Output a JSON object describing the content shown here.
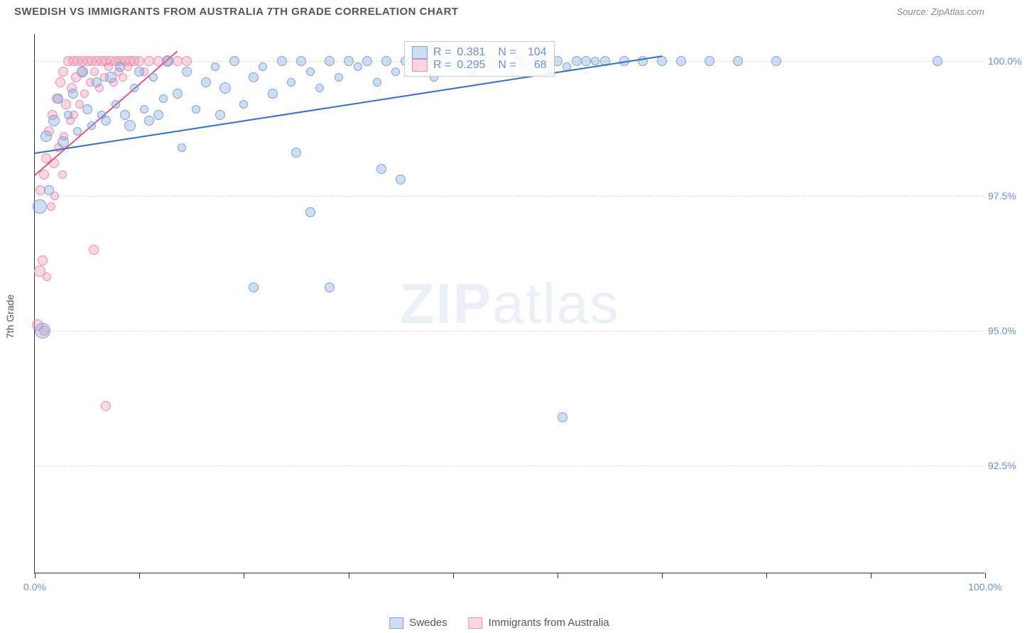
{
  "header": {
    "title": "SWEDISH VS IMMIGRANTS FROM AUSTRALIA 7TH GRADE CORRELATION CHART",
    "source": "Source: ZipAtlas.com"
  },
  "watermark": {
    "zip": "ZIP",
    "atlas": "atlas"
  },
  "axes": {
    "ylabel": "7th Grade",
    "xlim": [
      0,
      100
    ],
    "ylim": [
      90.5,
      100.5
    ],
    "yticks": [
      {
        "v": 92.5,
        "label": "92.5%"
      },
      {
        "v": 95.0,
        "label": "95.0%"
      },
      {
        "v": 97.5,
        "label": "97.5%"
      },
      {
        "v": 100.0,
        "label": "100.0%"
      }
    ],
    "xtick_positions": [
      0,
      11,
      22,
      33,
      44,
      55,
      66,
      77,
      88,
      100
    ],
    "xtick_labels": {
      "first": "0.0%",
      "last": "100.0%"
    },
    "grid_color": "#dddddd"
  },
  "series": {
    "swedes": {
      "label": "Swedes",
      "fill": "rgba(120,160,220,0.35)",
      "stroke": "#7aa3dc",
      "trend_color": "#2f6fd0",
      "R": "0.381",
      "N": "104",
      "trend": {
        "x1": 0,
        "y1": 98.3,
        "x2": 66,
        "y2": 100.1
      },
      "points": [
        {
          "x": 0.5,
          "y": 97.3,
          "r": 10
        },
        {
          "x": 0.8,
          "y": 95.0,
          "r": 11
        },
        {
          "x": 1.2,
          "y": 98.6,
          "r": 8
        },
        {
          "x": 1.5,
          "y": 97.6,
          "r": 7
        },
        {
          "x": 2.0,
          "y": 98.9,
          "r": 8
        },
        {
          "x": 2.5,
          "y": 99.3,
          "r": 7
        },
        {
          "x": 3.0,
          "y": 98.5,
          "r": 8
        },
        {
          "x": 3.5,
          "y": 99.0,
          "r": 6
        },
        {
          "x": 4.0,
          "y": 99.4,
          "r": 7
        },
        {
          "x": 4.5,
          "y": 98.7,
          "r": 6
        },
        {
          "x": 5.0,
          "y": 99.8,
          "r": 8
        },
        {
          "x": 5.5,
          "y": 99.1,
          "r": 7
        },
        {
          "x": 6.0,
          "y": 98.8,
          "r": 6
        },
        {
          "x": 6.5,
          "y": 99.6,
          "r": 7
        },
        {
          "x": 7.0,
          "y": 99.0,
          "r": 6
        },
        {
          "x": 7.5,
          "y": 98.9,
          "r": 7
        },
        {
          "x": 8.0,
          "y": 99.7,
          "r": 8
        },
        {
          "x": 8.5,
          "y": 99.2,
          "r": 6
        },
        {
          "x": 9.0,
          "y": 99.9,
          "r": 7
        },
        {
          "x": 9.5,
          "y": 99.0,
          "r": 7
        },
        {
          "x": 10.0,
          "y": 98.8,
          "r": 8
        },
        {
          "x": 10.5,
          "y": 99.5,
          "r": 6
        },
        {
          "x": 11.0,
          "y": 99.8,
          "r": 7
        },
        {
          "x": 11.5,
          "y": 99.1,
          "r": 6
        },
        {
          "x": 12.0,
          "y": 98.9,
          "r": 7
        },
        {
          "x": 12.5,
          "y": 99.7,
          "r": 6
        },
        {
          "x": 13.0,
          "y": 99.0,
          "r": 7
        },
        {
          "x": 13.5,
          "y": 99.3,
          "r": 6
        },
        {
          "x": 14.0,
          "y": 100.0,
          "r": 8
        },
        {
          "x": 15.0,
          "y": 99.4,
          "r": 7
        },
        {
          "x": 15.5,
          "y": 98.4,
          "r": 6
        },
        {
          "x": 16.0,
          "y": 99.8,
          "r": 7
        },
        {
          "x": 17.0,
          "y": 99.1,
          "r": 6
        },
        {
          "x": 18.0,
          "y": 99.6,
          "r": 7
        },
        {
          "x": 19.0,
          "y": 99.9,
          "r": 6
        },
        {
          "x": 19.5,
          "y": 99.0,
          "r": 7
        },
        {
          "x": 20.0,
          "y": 99.5,
          "r": 8
        },
        {
          "x": 21.0,
          "y": 100.0,
          "r": 7
        },
        {
          "x": 22.0,
          "y": 99.2,
          "r": 6
        },
        {
          "x": 23.0,
          "y": 99.7,
          "r": 7
        },
        {
          "x": 23.0,
          "y": 95.8,
          "r": 7
        },
        {
          "x": 24.0,
          "y": 99.9,
          "r": 6
        },
        {
          "x": 25.0,
          "y": 99.4,
          "r": 7
        },
        {
          "x": 26.0,
          "y": 100.0,
          "r": 7
        },
        {
          "x": 27.0,
          "y": 99.6,
          "r": 6
        },
        {
          "x": 27.5,
          "y": 98.3,
          "r": 7
        },
        {
          "x": 28.0,
          "y": 100.0,
          "r": 7
        },
        {
          "x": 29.0,
          "y": 99.8,
          "r": 6
        },
        {
          "x": 29.0,
          "y": 97.2,
          "r": 7
        },
        {
          "x": 30.0,
          "y": 99.5,
          "r": 6
        },
        {
          "x": 31.0,
          "y": 100.0,
          "r": 7
        },
        {
          "x": 31.0,
          "y": 95.8,
          "r": 7
        },
        {
          "x": 32.0,
          "y": 99.7,
          "r": 6
        },
        {
          "x": 33.0,
          "y": 100.0,
          "r": 7
        },
        {
          "x": 34.0,
          "y": 99.9,
          "r": 6
        },
        {
          "x": 35.0,
          "y": 100.0,
          "r": 7
        },
        {
          "x": 36.0,
          "y": 99.6,
          "r": 6
        },
        {
          "x": 36.5,
          "y": 98.0,
          "r": 7
        },
        {
          "x": 37.0,
          "y": 100.0,
          "r": 7
        },
        {
          "x": 38.0,
          "y": 99.8,
          "r": 6
        },
        {
          "x": 38.5,
          "y": 97.8,
          "r": 7
        },
        {
          "x": 39.0,
          "y": 100.0,
          "r": 7
        },
        {
          "x": 40.0,
          "y": 99.9,
          "r": 6
        },
        {
          "x": 41.0,
          "y": 100.0,
          "r": 7
        },
        {
          "x": 42.0,
          "y": 99.7,
          "r": 6
        },
        {
          "x": 43.0,
          "y": 100.0,
          "r": 7
        },
        {
          "x": 44.0,
          "y": 99.9,
          "r": 6
        },
        {
          "x": 45.0,
          "y": 100.0,
          "r": 7
        },
        {
          "x": 46.0,
          "y": 99.8,
          "r": 6
        },
        {
          "x": 47.0,
          "y": 100.0,
          "r": 7
        },
        {
          "x": 48.0,
          "y": 99.9,
          "r": 6
        },
        {
          "x": 49.0,
          "y": 100.0,
          "r": 7
        },
        {
          "x": 50.0,
          "y": 99.8,
          "r": 6
        },
        {
          "x": 51.0,
          "y": 100.0,
          "r": 7
        },
        {
          "x": 52.0,
          "y": 99.9,
          "r": 6
        },
        {
          "x": 53.0,
          "y": 100.0,
          "r": 7
        },
        {
          "x": 54.0,
          "y": 99.8,
          "r": 6
        },
        {
          "x": 55.0,
          "y": 100.0,
          "r": 7
        },
        {
          "x": 55.5,
          "y": 93.4,
          "r": 7
        },
        {
          "x": 56.0,
          "y": 99.9,
          "r": 6
        },
        {
          "x": 57.0,
          "y": 100.0,
          "r": 7
        },
        {
          "x": 58.0,
          "y": 100.0,
          "r": 7
        },
        {
          "x": 59.0,
          "y": 100.0,
          "r": 6
        },
        {
          "x": 60.0,
          "y": 100.0,
          "r": 7
        },
        {
          "x": 62.0,
          "y": 100.0,
          "r": 7
        },
        {
          "x": 64.0,
          "y": 100.0,
          "r": 7
        },
        {
          "x": 66.0,
          "y": 100.0,
          "r": 7
        },
        {
          "x": 68.0,
          "y": 100.0,
          "r": 7
        },
        {
          "x": 71.0,
          "y": 100.0,
          "r": 7
        },
        {
          "x": 74.0,
          "y": 100.0,
          "r": 7
        },
        {
          "x": 78.0,
          "y": 100.0,
          "r": 7
        },
        {
          "x": 95.0,
          "y": 100.0,
          "r": 7
        }
      ]
    },
    "australia": {
      "label": "Immigrants from Australia",
      "fill": "rgba(240,140,170,0.35)",
      "stroke": "#eb8fb0",
      "trend_color": "#e6537f",
      "R": "0.295",
      "N": "68",
      "trend": {
        "x1": 0,
        "y1": 97.9,
        "x2": 15,
        "y2": 100.2
      },
      "points": [
        {
          "x": 0.3,
          "y": 95.1,
          "r": 8
        },
        {
          "x": 0.5,
          "y": 96.1,
          "r": 8
        },
        {
          "x": 0.6,
          "y": 97.6,
          "r": 7
        },
        {
          "x": 0.8,
          "y": 96.3,
          "r": 7
        },
        {
          "x": 1.0,
          "y": 97.9,
          "r": 7
        },
        {
          "x": 1.0,
          "y": 95.0,
          "r": 7
        },
        {
          "x": 1.2,
          "y": 98.2,
          "r": 7
        },
        {
          "x": 1.3,
          "y": 96.0,
          "r": 6
        },
        {
          "x": 1.5,
          "y": 98.7,
          "r": 7
        },
        {
          "x": 1.7,
          "y": 97.3,
          "r": 6
        },
        {
          "x": 1.9,
          "y": 99.0,
          "r": 7
        },
        {
          "x": 2.0,
          "y": 98.1,
          "r": 7
        },
        {
          "x": 2.1,
          "y": 97.5,
          "r": 6
        },
        {
          "x": 2.3,
          "y": 99.3,
          "r": 7
        },
        {
          "x": 2.5,
          "y": 98.4,
          "r": 6
        },
        {
          "x": 2.7,
          "y": 99.6,
          "r": 7
        },
        {
          "x": 2.9,
          "y": 97.9,
          "r": 6
        },
        {
          "x": 3.0,
          "y": 99.8,
          "r": 7
        },
        {
          "x": 3.1,
          "y": 98.6,
          "r": 6
        },
        {
          "x": 3.3,
          "y": 99.2,
          "r": 7
        },
        {
          "x": 3.5,
          "y": 100.0,
          "r": 7
        },
        {
          "x": 3.7,
          "y": 98.9,
          "r": 6
        },
        {
          "x": 3.9,
          "y": 99.5,
          "r": 7
        },
        {
          "x": 4.0,
          "y": 100.0,
          "r": 7
        },
        {
          "x": 4.1,
          "y": 99.0,
          "r": 6
        },
        {
          "x": 4.3,
          "y": 99.7,
          "r": 7
        },
        {
          "x": 4.5,
          "y": 100.0,
          "r": 7
        },
        {
          "x": 4.7,
          "y": 99.2,
          "r": 6
        },
        {
          "x": 4.9,
          "y": 99.8,
          "r": 7
        },
        {
          "x": 5.0,
          "y": 100.0,
          "r": 7
        },
        {
          "x": 5.2,
          "y": 99.4,
          "r": 6
        },
        {
          "x": 5.5,
          "y": 100.0,
          "r": 7
        },
        {
          "x": 5.8,
          "y": 99.6,
          "r": 6
        },
        {
          "x": 6.0,
          "y": 100.0,
          "r": 7
        },
        {
          "x": 6.2,
          "y": 96.5,
          "r": 7
        },
        {
          "x": 6.3,
          "y": 99.8,
          "r": 6
        },
        {
          "x": 6.5,
          "y": 100.0,
          "r": 7
        },
        {
          "x": 6.8,
          "y": 99.5,
          "r": 6
        },
        {
          "x": 7.0,
          "y": 100.0,
          "r": 7
        },
        {
          "x": 7.3,
          "y": 99.7,
          "r": 6
        },
        {
          "x": 7.5,
          "y": 100.0,
          "r": 7
        },
        {
          "x": 7.5,
          "y": 93.6,
          "r": 7
        },
        {
          "x": 7.8,
          "y": 99.9,
          "r": 6
        },
        {
          "x": 8.0,
          "y": 100.0,
          "r": 7
        },
        {
          "x": 8.3,
          "y": 99.6,
          "r": 6
        },
        {
          "x": 8.5,
          "y": 100.0,
          "r": 7
        },
        {
          "x": 8.8,
          "y": 99.8,
          "r": 6
        },
        {
          "x": 9.0,
          "y": 100.0,
          "r": 7
        },
        {
          "x": 9.3,
          "y": 99.7,
          "r": 6
        },
        {
          "x": 9.5,
          "y": 100.0,
          "r": 7
        },
        {
          "x": 9.8,
          "y": 99.9,
          "r": 6
        },
        {
          "x": 10.0,
          "y": 100.0,
          "r": 7
        },
        {
          "x": 10.5,
          "y": 100.0,
          "r": 7
        },
        {
          "x": 11.0,
          "y": 100.0,
          "r": 7
        },
        {
          "x": 11.5,
          "y": 99.8,
          "r": 6
        },
        {
          "x": 12.0,
          "y": 100.0,
          "r": 7
        },
        {
          "x": 13.0,
          "y": 100.0,
          "r": 7
        },
        {
          "x": 14.0,
          "y": 100.0,
          "r": 7
        },
        {
          "x": 15.0,
          "y": 100.0,
          "r": 7
        },
        {
          "x": 16.0,
          "y": 100.0,
          "r": 7
        }
      ]
    }
  },
  "stats_box": {
    "r_label": "R =",
    "n_label": "N ="
  },
  "bottom_legend": {
    "items": [
      "swedes",
      "australia"
    ]
  }
}
